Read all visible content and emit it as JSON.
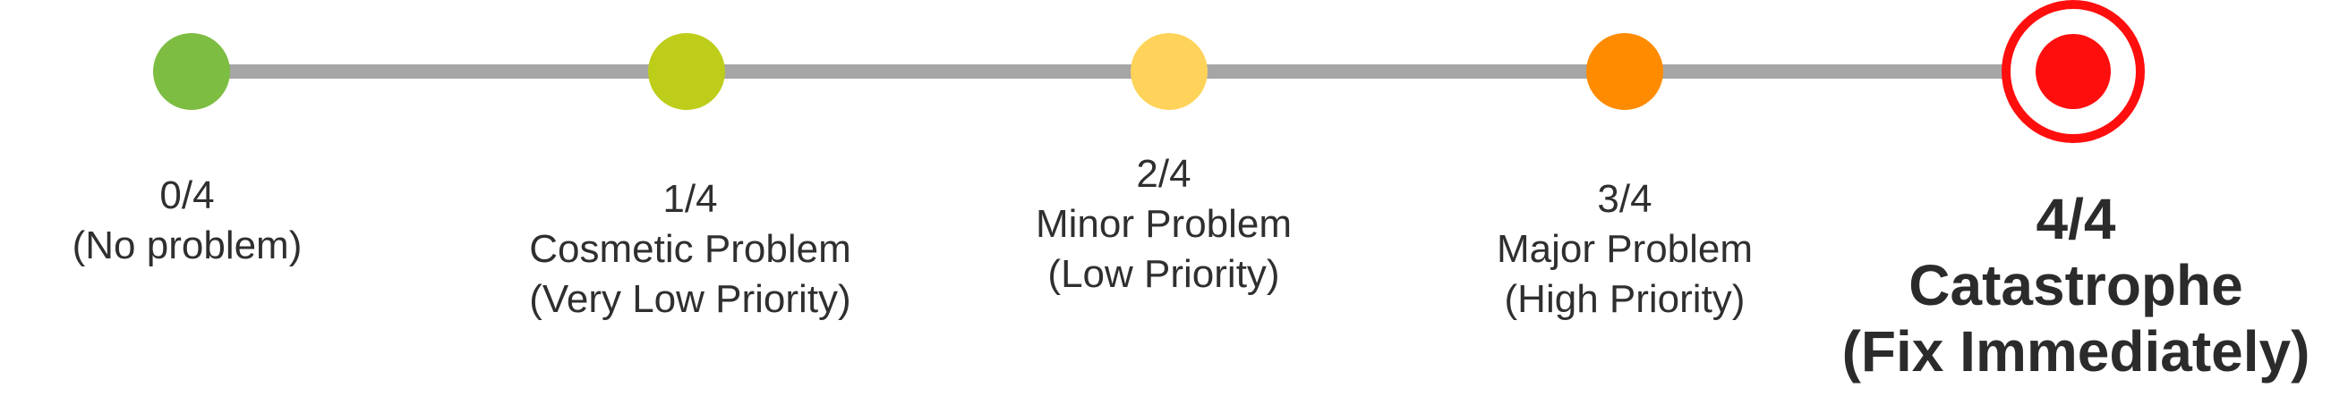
{
  "scale": {
    "levels": [
      {
        "score": "0/4",
        "name": "(No problem)",
        "priority": "",
        "color": "#7dbd42",
        "emphasized": false
      },
      {
        "score": "1/4",
        "name": "Cosmetic Problem",
        "priority": "(Very Low Priority)",
        "color": "#bdcd1a",
        "emphasized": false
      },
      {
        "score": "2/4",
        "name": "Minor Problem",
        "priority": "(Low Priority)",
        "color": "#ffd35a",
        "emphasized": false
      },
      {
        "score": "3/4",
        "name": "Major Problem",
        "priority": "(High Priority)",
        "color": "#ff8c00",
        "emphasized": false
      },
      {
        "score": "4/4",
        "name": "Catastrophe",
        "priority": "(Fix Immediately)",
        "color": "#ff0e0e",
        "emphasized": true
      }
    ],
    "track_color": "#a6a6a6"
  }
}
